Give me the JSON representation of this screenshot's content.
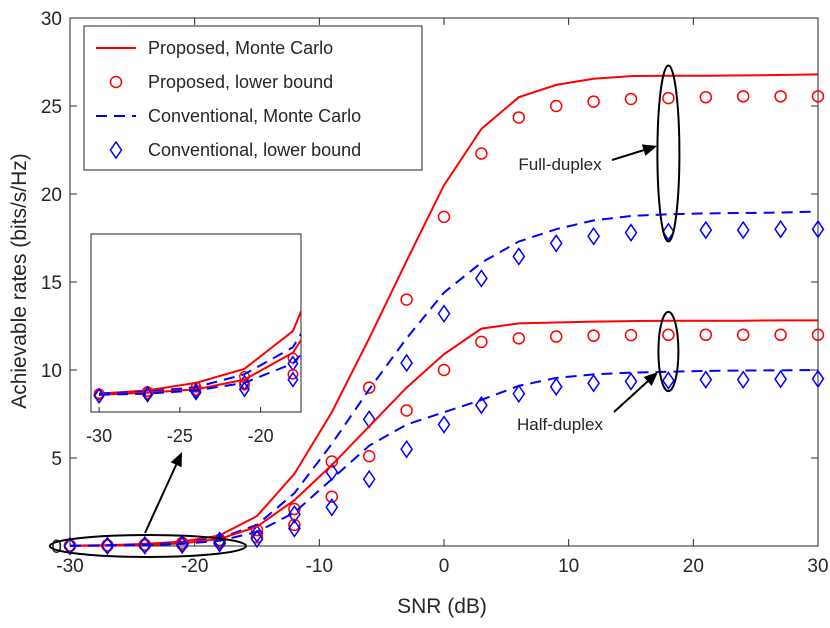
{
  "chart_data": {
    "type": "line",
    "xlabel": "SNR (dB)",
    "ylabel": "Achievable rates (bits/s/Hz)",
    "xlim": [
      -30,
      30
    ],
    "ylim": [
      0,
      30
    ],
    "xticks": [
      -30,
      -20,
      -10,
      0,
      10,
      20,
      30
    ],
    "yticks": [
      0,
      5,
      10,
      15,
      20,
      25,
      30
    ],
    "grid": false,
    "legend_position": "top-left",
    "colors": {
      "proposed": "#ff0000",
      "conventional": "#0000ff",
      "axis": "#262626",
      "annotation": "#000000"
    },
    "series": [
      {
        "name": "Proposed, Monte Carlo",
        "color": "#ff0000",
        "style": "solid",
        "group": "full",
        "x": [
          -30,
          -27,
          -24,
          -21,
          -18,
          -15,
          -12,
          -9,
          -6,
          -3,
          0,
          3,
          6,
          9,
          12,
          15,
          18,
          21,
          24,
          27,
          30
        ],
        "y": [
          0.02,
          0.05,
          0.12,
          0.25,
          0.6,
          1.7,
          4.1,
          7.6,
          11.8,
          16.2,
          20.5,
          23.7,
          25.5,
          26.2,
          26.55,
          26.7,
          26.72,
          26.72,
          26.74,
          26.76,
          26.8
        ]
      },
      {
        "name": "Proposed, lower bound",
        "color": "#ff0000",
        "style": "circle",
        "group": "full",
        "x": [
          -30,
          -27,
          -24,
          -21,
          -18,
          -15,
          -12,
          -9,
          -6,
          -3,
          0,
          3,
          6,
          9,
          12,
          15,
          18,
          21,
          24,
          27,
          30
        ],
        "y": [
          0.02,
          0.04,
          0.08,
          0.18,
          0.35,
          0.9,
          2.1,
          4.8,
          9.0,
          14.0,
          18.7,
          22.3,
          24.35,
          25.0,
          25.25,
          25.4,
          25.45,
          25.5,
          25.55,
          25.55,
          25.55
        ]
      },
      {
        "name": "Conventional, Monte Carlo",
        "color": "#0000ff",
        "style": "dashed",
        "group": "full",
        "x": [
          -30,
          -27,
          -24,
          -21,
          -18,
          -15,
          -12,
          -9,
          -6,
          -3,
          0,
          3,
          6,
          9,
          12,
          15,
          18,
          21,
          24,
          27,
          30
        ],
        "y": [
          0.02,
          0.04,
          0.08,
          0.2,
          0.45,
          1.2,
          3.0,
          5.8,
          8.9,
          11.8,
          14.4,
          16.1,
          17.3,
          18.0,
          18.5,
          18.75,
          18.85,
          18.9,
          18.92,
          18.95,
          19.0
        ]
      },
      {
        "name": "Conventional, lower bound",
        "color": "#0000ff",
        "style": "diamond",
        "group": "full",
        "x": [
          -30,
          -27,
          -24,
          -21,
          -18,
          -15,
          -12,
          -9,
          -6,
          -3,
          0,
          3,
          6,
          9,
          12,
          15,
          18,
          21,
          24,
          27,
          30
        ],
        "y": [
          0.0,
          0.02,
          0.05,
          0.12,
          0.3,
          0.7,
          1.8,
          4.2,
          7.2,
          10.4,
          13.2,
          15.2,
          16.45,
          17.2,
          17.6,
          17.8,
          17.85,
          17.95,
          17.95,
          18.0,
          18.0
        ]
      },
      {
        "name": "",
        "color": "#ff0000",
        "style": "solid",
        "group": "half",
        "x": [
          -30,
          -27,
          -24,
          -21,
          -18,
          -15,
          -12,
          -9,
          -6,
          -3,
          0,
          3,
          6,
          9,
          12,
          15,
          18,
          21,
          24,
          27,
          30
        ],
        "y": [
          0.01,
          0.03,
          0.06,
          0.15,
          0.4,
          1.1,
          2.6,
          4.6,
          6.8,
          9.0,
          10.9,
          12.35,
          12.65,
          12.7,
          12.75,
          12.78,
          12.8,
          12.8,
          12.8,
          12.82,
          12.82
        ]
      },
      {
        "name": "",
        "color": "#ff0000",
        "style": "circle",
        "group": "half",
        "x": [
          -30,
          -27,
          -24,
          -21,
          -18,
          -15,
          -12,
          -9,
          -6,
          -3,
          0,
          3,
          6,
          9,
          12,
          15,
          18,
          21,
          24,
          27,
          30
        ],
        "y": [
          0.01,
          0.02,
          0.05,
          0.1,
          0.2,
          0.5,
          1.2,
          2.8,
          5.1,
          7.7,
          10.0,
          11.6,
          11.8,
          11.9,
          11.95,
          11.98,
          12.0,
          12.0,
          12.0,
          12.0,
          12.0
        ]
      },
      {
        "name": "",
        "color": "#0000ff",
        "style": "dashed",
        "group": "half",
        "x": [
          -30,
          -27,
          -24,
          -21,
          -18,
          -15,
          -12,
          -9,
          -6,
          -3,
          0,
          3,
          6,
          9,
          12,
          15,
          18,
          21,
          24,
          27,
          30
        ],
        "y": [
          0.01,
          0.02,
          0.05,
          0.12,
          0.3,
          0.8,
          1.9,
          3.8,
          5.7,
          6.9,
          7.6,
          8.3,
          9.1,
          9.55,
          9.75,
          9.85,
          9.9,
          9.95,
          9.97,
          9.98,
          10.0
        ]
      },
      {
        "name": "",
        "color": "#0000ff",
        "style": "diamond",
        "group": "half",
        "x": [
          -30,
          -27,
          -24,
          -21,
          -18,
          -15,
          -12,
          -9,
          -6,
          -3,
          0,
          3,
          6,
          9,
          12,
          15,
          18,
          21,
          24,
          27,
          30
        ],
        "y": [
          0.0,
          0.01,
          0.03,
          0.06,
          0.15,
          0.4,
          1.0,
          2.2,
          3.8,
          5.5,
          6.9,
          8.0,
          8.65,
          9.05,
          9.25,
          9.35,
          9.4,
          9.45,
          9.45,
          9.48,
          9.5
        ]
      }
    ],
    "annotations": [
      {
        "text": "Full-duplex",
        "x": 18,
        "y": 22.5
      },
      {
        "text": "Half-duplex",
        "x": 18,
        "y": 10.5
      }
    ],
    "inset": {
      "xlim": [
        -30.5,
        -17.5
      ],
      "ylim": [
        -0.15,
        1.5
      ],
      "xticks": [
        -30,
        -25,
        -20
      ],
      "source_region": {
        "x": [
          -30.5,
          -17
        ],
        "y": [
          -0.35,
          0.35
        ]
      }
    }
  }
}
